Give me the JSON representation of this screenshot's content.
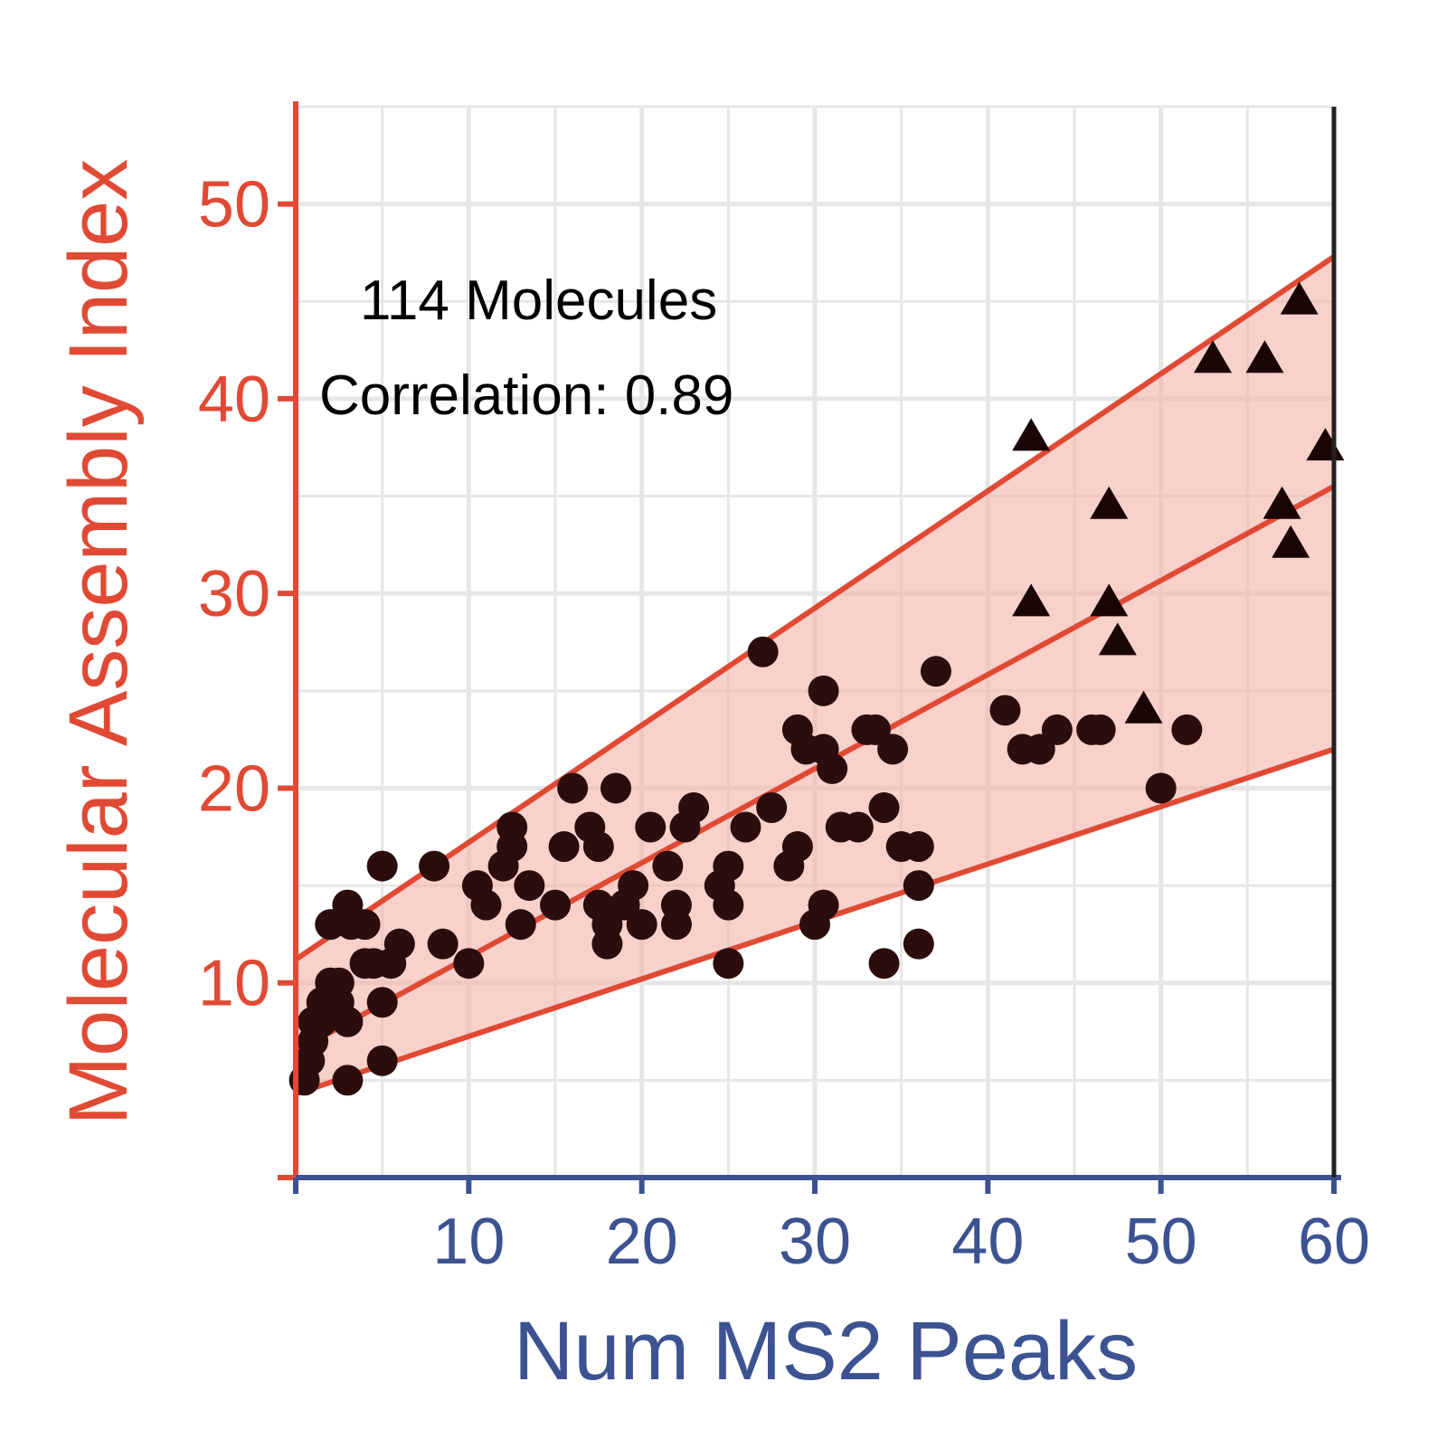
{
  "chart_data": {
    "type": "scatter",
    "title": "",
    "xlabel": "Num MS2 Peaks",
    "ylabel": "Molecular Assembly Index",
    "xlim": [
      0,
      60
    ],
    "ylim": [
      0,
      55
    ],
    "xticks": [
      10,
      20,
      30,
      40,
      50,
      60
    ],
    "yticks": [
      10,
      20,
      30,
      40,
      50
    ],
    "grid": true,
    "annotations": [
      "114 Molecules",
      "Correlation:  0.89"
    ],
    "colors": {
      "y_axis": "#e04a35",
      "x_axis": "#3c5291",
      "fit_line": "#e04a35",
      "band_fill": "#f3b3a8",
      "circle_points": "#2b0d0d",
      "triangle_points": "#1a0505",
      "grid": "#e6e6e6"
    },
    "fit": {
      "center": {
        "x": [
          0,
          60
        ],
        "y": [
          6.5,
          35.5
        ]
      },
      "upper": {
        "x": [
          0,
          60
        ],
        "y": [
          11.2,
          47.3
        ]
      },
      "lower": {
        "x": [
          0,
          60
        ],
        "y": [
          4.3,
          22
        ]
      }
    },
    "series": [
      {
        "marker": "circle",
        "points": [
          [
            0.5,
            5
          ],
          [
            0.8,
            6
          ],
          [
            1,
            7
          ],
          [
            1,
            8
          ],
          [
            1.5,
            9
          ],
          [
            1.5,
            8
          ],
          [
            2,
            10
          ],
          [
            2,
            9
          ],
          [
            2,
            13
          ],
          [
            2.5,
            10
          ],
          [
            2.5,
            9
          ],
          [
            3,
            14
          ],
          [
            3,
            8
          ],
          [
            3,
            5
          ],
          [
            3.2,
            13
          ],
          [
            4,
            13
          ],
          [
            4,
            11
          ],
          [
            4.5,
            11
          ],
          [
            5,
            16
          ],
          [
            5,
            9
          ],
          [
            5,
            6
          ],
          [
            5.5,
            11
          ],
          [
            6,
            12
          ],
          [
            8,
            16
          ],
          [
            8.5,
            12
          ],
          [
            10,
            11
          ],
          [
            10.5,
            15
          ],
          [
            11,
            14
          ],
          [
            12,
            16
          ],
          [
            12.5,
            17
          ],
          [
            12.5,
            18
          ],
          [
            13,
            13
          ],
          [
            13.5,
            15
          ],
          [
            15,
            14
          ],
          [
            15.5,
            17
          ],
          [
            16,
            20
          ],
          [
            17,
            18
          ],
          [
            17.5,
            17
          ],
          [
            17.5,
            14
          ],
          [
            18,
            13
          ],
          [
            18,
            12
          ],
          [
            18.5,
            20
          ],
          [
            19,
            14
          ],
          [
            19.5,
            15
          ],
          [
            20,
            13
          ],
          [
            20.5,
            18
          ],
          [
            21.5,
            16
          ],
          [
            22,
            14
          ],
          [
            22,
            13
          ],
          [
            22.5,
            18
          ],
          [
            23,
            19
          ],
          [
            24.5,
            15
          ],
          [
            25,
            11
          ],
          [
            25,
            16
          ],
          [
            25,
            14
          ],
          [
            26,
            18
          ],
          [
            27,
            27
          ],
          [
            27.5,
            19
          ],
          [
            28.5,
            16
          ],
          [
            29,
            17
          ],
          [
            29,
            23
          ],
          [
            29.5,
            22
          ],
          [
            30,
            13
          ],
          [
            30.5,
            14
          ],
          [
            30.5,
            25
          ],
          [
            30.5,
            22
          ],
          [
            31,
            21
          ],
          [
            31.5,
            18
          ],
          [
            32.5,
            18
          ],
          [
            33,
            23
          ],
          [
            33.5,
            23
          ],
          [
            34,
            11
          ],
          [
            34,
            19
          ],
          [
            34.5,
            22
          ],
          [
            35,
            17
          ],
          [
            36,
            17
          ],
          [
            36,
            15
          ],
          [
            36,
            12
          ],
          [
            37,
            26
          ],
          [
            41,
            24
          ],
          [
            42,
            22
          ],
          [
            43,
            22
          ],
          [
            44,
            23
          ],
          [
            46,
            23
          ],
          [
            46.5,
            23
          ],
          [
            50,
            20
          ],
          [
            51.5,
            23
          ]
        ]
      },
      {
        "marker": "triangle",
        "points": [
          [
            42.5,
            38
          ],
          [
            42.5,
            29.5
          ],
          [
            47,
            34.5
          ],
          [
            47,
            29.5
          ],
          [
            47.5,
            27.5
          ],
          [
            49,
            24
          ],
          [
            53,
            42
          ],
          [
            56,
            42
          ],
          [
            57,
            34.5
          ],
          [
            57.5,
            32.5
          ],
          [
            58,
            45
          ],
          [
            59.5,
            37.5
          ]
        ]
      }
    ]
  }
}
